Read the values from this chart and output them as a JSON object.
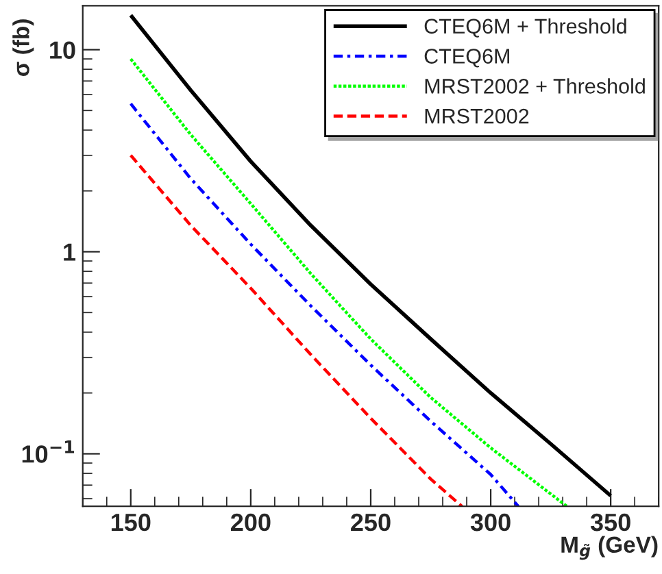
{
  "chart_data": {
    "type": "line",
    "xlabel": "M$_{g̃}$ (GeV)",
    "ylabel": "σ (fb)",
    "log": "y",
    "xlim": [
      130,
      370
    ],
    "xticks": [
      150,
      200,
      250,
      300,
      350
    ],
    "ylim": [
      0.055,
      16.5
    ],
    "yticks": [
      {
        "value": 0.1,
        "label": "10$^{−1}$"
      },
      1,
      10
    ],
    "legend": "top right",
    "grid": false,
    "series": [
      {
        "name": "CTEQ6M + Threshold",
        "color": "#000000",
        "line_style": "solid",
        "x": [
          150,
          175,
          200,
          225,
          250,
          275,
          300,
          325,
          350
        ],
        "values": [
          14.8,
          6.3,
          2.8,
          1.35,
          0.69,
          0.37,
          0.2,
          0.112,
          0.062
        ]
      },
      {
        "name": "CTEQ6M",
        "color": "#0000ff",
        "line_style": "dashdot",
        "x": [
          150,
          175,
          200,
          225,
          250,
          275,
          300,
          311.5
        ],
        "values": [
          5.4,
          2.3,
          1.09,
          0.54,
          0.275,
          0.145,
          0.079,
          0.055
        ]
      },
      {
        "name": "MRST2002 + Threshold",
        "color": "#00ff00",
        "line_style": "dotted",
        "x": [
          150,
          175,
          200,
          225,
          250,
          275,
          300,
          331.7
        ],
        "values": [
          9.0,
          3.8,
          1.73,
          0.78,
          0.37,
          0.19,
          0.107,
          0.055
        ]
      },
      {
        "name": "MRST2002",
        "color": "#ff0000",
        "line_style": "dashed",
        "x": [
          150,
          175,
          200,
          225,
          250,
          275,
          288
        ],
        "values": [
          3.0,
          1.35,
          0.66,
          0.31,
          0.15,
          0.075,
          0.055
        ]
      }
    ]
  }
}
